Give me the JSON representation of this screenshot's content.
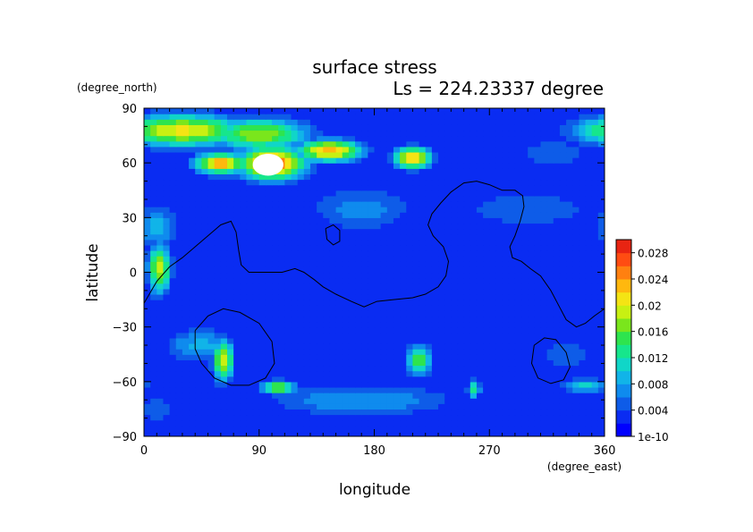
{
  "chart_data": {
    "type": "heatmap",
    "title": "surface stress",
    "subtitle": "Ls = 224.23337 degree",
    "xlabel": "longitude",
    "ylabel": "latitude",
    "xunit": "(degree_east)",
    "yunit": "(degree_north)",
    "xlim": [
      0,
      360
    ],
    "ylim": [
      -90,
      90
    ],
    "xticks": [
      0,
      90,
      180,
      270,
      360
    ],
    "yticks": [
      -90,
      -60,
      -30,
      0,
      30,
      60,
      90
    ],
    "colorbar": {
      "min": 0,
      "max": 0.03,
      "tick_labels": [
        "1e-10",
        "0.004",
        "0.008",
        "0.012",
        "0.016",
        "0.02",
        "0.024",
        "0.028"
      ],
      "tick_values": [
        0,
        0.004,
        0.008,
        0.012,
        0.016,
        0.02,
        0.024,
        0.028
      ],
      "colors": [
        "#0000ff",
        "#0a2cf2",
        "#0e5ce8",
        "#0f8bee",
        "#11b4e8",
        "#10d6c8",
        "#16e68c",
        "#2ee44e",
        "#7ae61c",
        "#c8f012",
        "#f4e414",
        "#ffb80e",
        "#ff8010",
        "#ff4c12",
        "#e82412"
      ]
    },
    "background_value": 0.002,
    "blobs": [
      {
        "lon": 30,
        "lat": 78,
        "rlon": 50,
        "rlat": 9,
        "value": 0.021
      },
      {
        "lon": 90,
        "lat": 76,
        "rlon": 40,
        "rlat": 9,
        "value": 0.018
      },
      {
        "lon": 145,
        "lat": 67,
        "rlon": 25,
        "rlat": 6,
        "value": 0.024
      },
      {
        "lon": 100,
        "lat": 60,
        "rlon": 25,
        "rlat": 9,
        "value": 0.028
      },
      {
        "lon": 60,
        "lat": 60,
        "rlon": 20,
        "rlat": 6,
        "value": 0.024
      },
      {
        "lon": 210,
        "lat": 63,
        "rlon": 14,
        "rlat": 6,
        "value": 0.024
      },
      {
        "lon": 12,
        "lat": 2,
        "rlon": 9,
        "rlat": 14,
        "value": 0.019
      },
      {
        "lon": 62,
        "lat": -48,
        "rlon": 8,
        "rlat": 12,
        "value": 0.02
      },
      {
        "lon": 105,
        "lat": -63,
        "rlon": 14,
        "rlat": 4,
        "value": 0.017
      },
      {
        "lon": 215,
        "lat": -48,
        "rlon": 10,
        "rlat": 8,
        "value": 0.017
      },
      {
        "lon": 258,
        "lat": -64,
        "rlon": 5,
        "rlat": 5,
        "value": 0.014
      },
      {
        "lon": 345,
        "lat": -62,
        "rlon": 18,
        "rlat": 4,
        "value": 0.012
      },
      {
        "lon": 352,
        "lat": 78,
        "rlon": 12,
        "rlat": 7,
        "value": 0.014
      },
      {
        "lon": 10,
        "lat": 25,
        "rlon": 18,
        "rlat": 12,
        "value": 0.009
      },
      {
        "lon": 45,
        "lat": -40,
        "rlon": 30,
        "rlat": 10,
        "value": 0.009
      },
      {
        "lon": 170,
        "lat": -70,
        "rlon": 80,
        "rlat": 10,
        "value": 0.008
      },
      {
        "lon": 300,
        "lat": 35,
        "rlon": 60,
        "rlat": 12,
        "value": 0.006
      },
      {
        "lon": 170,
        "lat": 35,
        "rlon": 45,
        "rlat": 14,
        "value": 0.007
      },
      {
        "lon": 330,
        "lat": -45,
        "rlon": 25,
        "rlat": 10,
        "value": 0.006
      },
      {
        "lon": 10,
        "lat": -75,
        "rlon": 20,
        "rlat": 8,
        "value": 0.006
      },
      {
        "lon": 320,
        "lat": 65,
        "rlon": 30,
        "rlat": 10,
        "value": 0.006
      }
    ],
    "saturated_region": {
      "lon": 97,
      "lat": 59,
      "rlon": 12,
      "rlat": 6,
      "value": 0.035
    },
    "contours": [
      [
        [
          0,
          -17
        ],
        [
          10,
          -5
        ],
        [
          20,
          3
        ],
        [
          30,
          8
        ],
        [
          40,
          14
        ],
        [
          50,
          20
        ],
        [
          60,
          26
        ],
        [
          68,
          28
        ],
        [
          72,
          22
        ],
        [
          74,
          12
        ],
        [
          76,
          4
        ],
        [
          82,
          0
        ],
        [
          95,
          0
        ],
        [
          108,
          0
        ],
        [
          118,
          2
        ],
        [
          125,
          0
        ],
        [
          133,
          -4
        ],
        [
          140,
          -8
        ],
        [
          150,
          -12
        ],
        [
          162,
          -16
        ],
        [
          172,
          -19
        ],
        [
          182,
          -16
        ],
        [
          195,
          -15
        ],
        [
          210,
          -14
        ],
        [
          220,
          -12
        ],
        [
          230,
          -8
        ],
        [
          236,
          -2
        ],
        [
          238,
          6
        ],
        [
          234,
          14
        ],
        [
          226,
          20
        ],
        [
          222,
          26
        ],
        [
          225,
          32
        ],
        [
          232,
          38
        ],
        [
          240,
          44
        ],
        [
          250,
          49
        ],
        [
          260,
          50
        ],
        [
          270,
          48
        ],
        [
          280,
          45
        ],
        [
          290,
          45
        ],
        [
          296,
          42
        ],
        [
          297,
          36
        ],
        [
          294,
          28
        ],
        [
          290,
          20
        ],
        [
          286,
          14
        ],
        [
          288,
          8
        ],
        [
          295,
          6
        ],
        [
          302,
          2
        ],
        [
          310,
          -2
        ],
        [
          318,
          -10
        ],
        [
          324,
          -18
        ],
        [
          330,
          -26
        ],
        [
          338,
          -30
        ],
        [
          345,
          -28
        ],
        [
          352,
          -24
        ],
        [
          360,
          -20
        ]
      ],
      [
        [
          142,
          24
        ],
        [
          148,
          26
        ],
        [
          153,
          23
        ],
        [
          153,
          17
        ],
        [
          148,
          15
        ],
        [
          143,
          18
        ],
        [
          142,
          24
        ]
      ],
      [
        [
          40,
          -32
        ],
        [
          50,
          -24
        ],
        [
          62,
          -20
        ],
        [
          75,
          -22
        ],
        [
          90,
          -28
        ],
        [
          100,
          -38
        ],
        [
          102,
          -50
        ],
        [
          95,
          -58
        ],
        [
          82,
          -62
        ],
        [
          68,
          -62
        ],
        [
          55,
          -58
        ],
        [
          45,
          -50
        ],
        [
          40,
          -42
        ],
        [
          40,
          -32
        ]
      ],
      [
        [
          305,
          -40
        ],
        [
          313,
          -36
        ],
        [
          322,
          -37
        ],
        [
          330,
          -44
        ],
        [
          333,
          -52
        ],
        [
          328,
          -59
        ],
        [
          318,
          -61
        ],
        [
          308,
          -58
        ],
        [
          303,
          -50
        ],
        [
          305,
          -40
        ]
      ]
    ]
  }
}
